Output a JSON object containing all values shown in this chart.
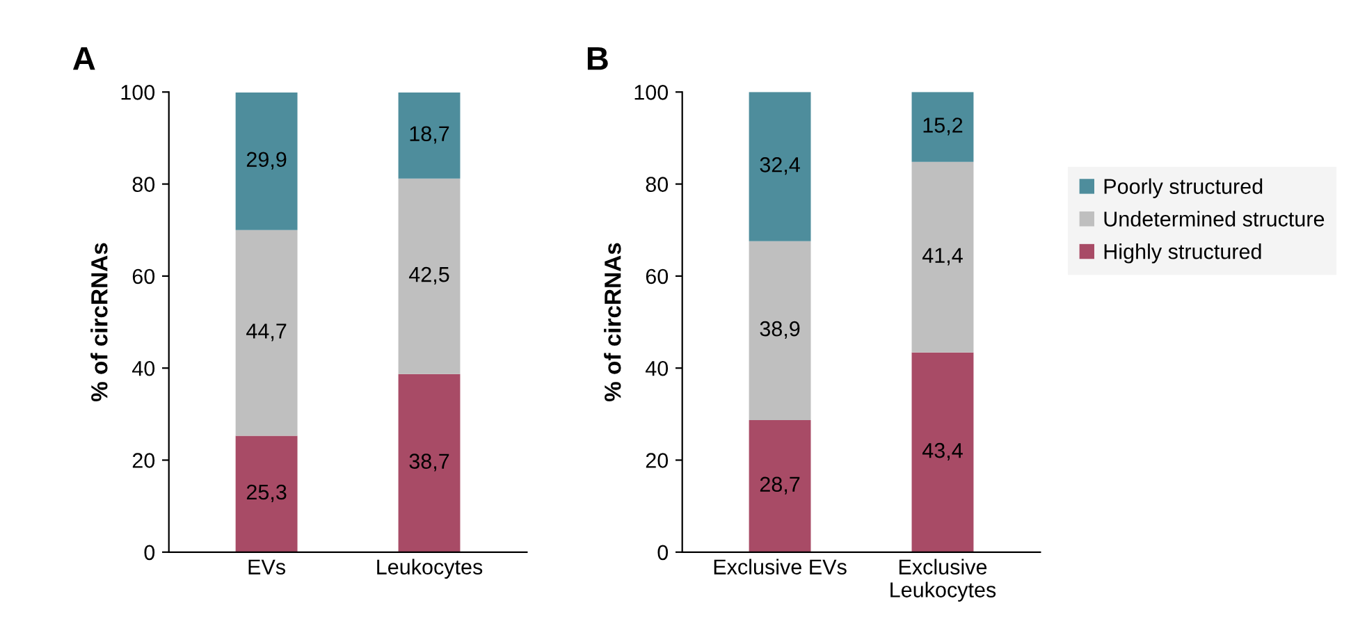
{
  "chart_data": [
    {
      "type": "bar",
      "title": "A",
      "stacked": true,
      "categories": [
        "EVs",
        "Leukocytes"
      ],
      "ylabel": "% of circRNAs",
      "ylim": [
        0,
        100
      ],
      "yticks": [
        0,
        20,
        40,
        60,
        80,
        100
      ],
      "grid": false,
      "legend": false,
      "series": [
        {
          "color": "#a84b66",
          "values": [
            25.3,
            38.7
          ],
          "value_labels": [
            "25,3",
            "38,7"
          ]
        },
        {
          "color": "#bfbfbf",
          "values": [
            44.7,
            42.5
          ],
          "value_labels": [
            "44,7",
            "42,5"
          ]
        },
        {
          "color": "#4e8d9c",
          "values": [
            29.9,
            18.7
          ],
          "value_labels": [
            "29,9",
            "18,7"
          ]
        }
      ]
    },
    {
      "type": "bar",
      "title": "B",
      "stacked": true,
      "categories": [
        "Exclusive EVs",
        "Exclusive\nLeukocytes"
      ],
      "ylabel": "% of circRNAs",
      "ylim": [
        0,
        100
      ],
      "yticks": [
        0,
        20,
        40,
        60,
        80,
        100
      ],
      "grid": false,
      "legend": "right",
      "series": [
        {
          "name": "Highly structured",
          "color": "#a84b66",
          "values": [
            28.7,
            43.4
          ],
          "value_labels": [
            "28,7",
            "43,4"
          ]
        },
        {
          "name": "Undetermined structure",
          "color": "#bfbfbf",
          "values": [
            38.9,
            41.4
          ],
          "value_labels": [
            "38,9",
            "41,4"
          ]
        },
        {
          "name": "Poorly structured",
          "color": "#4e8d9c",
          "values": [
            32.4,
            15.2
          ],
          "value_labels": [
            "32,4",
            "15,2"
          ]
        }
      ]
    }
  ]
}
